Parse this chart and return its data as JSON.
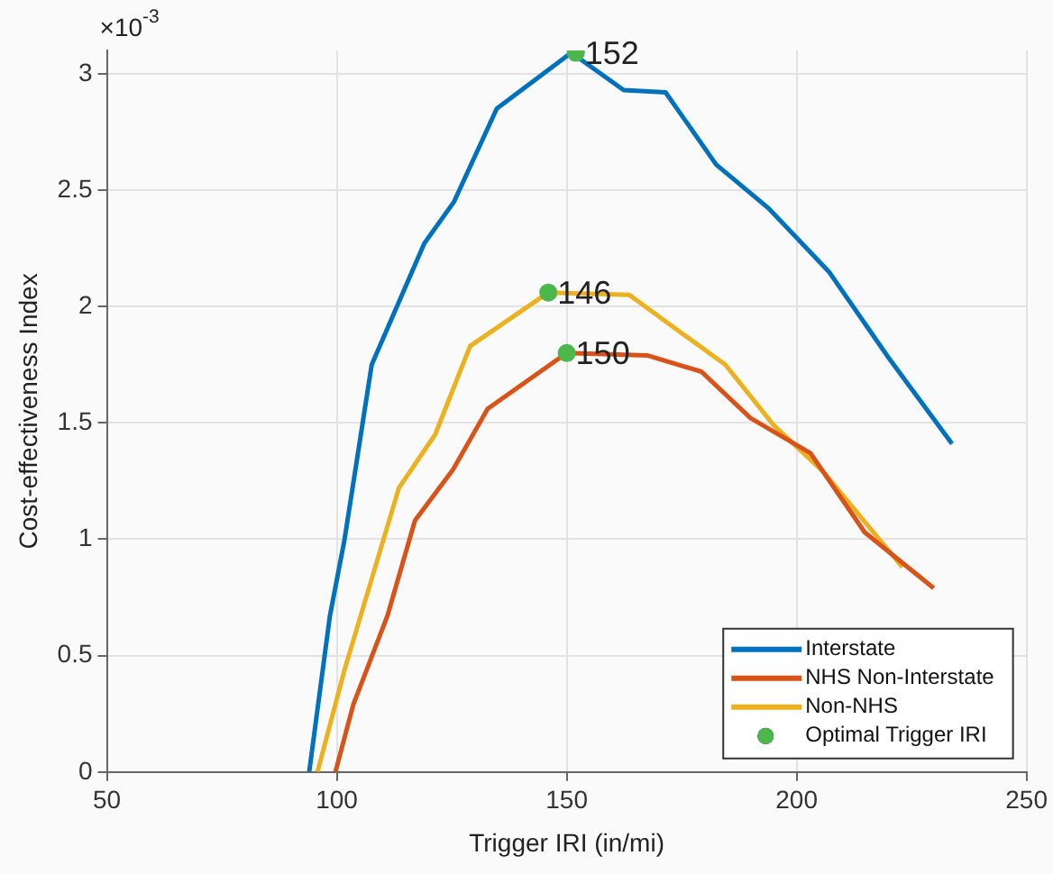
{
  "chart_data": {
    "type": "line",
    "xlabel": "Trigger IRI (in/mi)",
    "ylabel": "Cost-effectiveness Index",
    "xlim": [
      50,
      250
    ],
    "xticks": [
      50,
      100,
      150,
      200,
      250
    ],
    "ylim": [
      0,
      3.1
    ],
    "yticks": [
      0,
      0.5,
      1,
      1.5,
      2,
      2.5,
      3
    ],
    "grid": true,
    "legend": "bottom right",
    "marker": "none",
    "line_style": "solid",
    "series": [
      {
        "name": "Interstate",
        "color": "#0072bd",
        "x": [
          94,
          98.5,
          101.7,
          107.6,
          119,
          125.5,
          134.8,
          151,
          162.4,
          171.5,
          182.5,
          194,
          207,
          220,
          233.8
        ],
        "values": [
          0,
          0.67,
          1.0,
          1.75,
          2.27,
          2.45,
          2.85,
          3.09,
          2.93,
          2.92,
          2.61,
          2.42,
          2.15,
          1.78,
          1.41
        ]
      },
      {
        "name": "NHS Non-Interstate",
        "color": "#d95319",
        "x": [
          99.7,
          103.6,
          111,
          117,
          125.3,
          132.8,
          150,
          167.5,
          179.3,
          190,
          203,
          214.8,
          229.8
        ],
        "values": [
          0,
          0.29,
          0.67,
          1.08,
          1.3,
          1.56,
          1.8,
          1.79,
          1.72,
          1.52,
          1.37,
          1.03,
          0.79
        ]
      },
      {
        "name": "Non-NHS",
        "color": "#edb120",
        "x": [
          95.8,
          101.7,
          113.5,
          121.4,
          129,
          146,
          163.6,
          175.4,
          184.5,
          195,
          205.8,
          223
        ],
        "values": [
          0,
          0.44,
          1.22,
          1.45,
          1.83,
          2.06,
          2.05,
          1.88,
          1.75,
          1.49,
          1.29,
          0.88
        ]
      },
      {
        "name": "Optimal Trigger IRI",
        "type": "scatter",
        "marker": "circle",
        "color": "#4cb84c",
        "x": [
          152,
          146,
          150
        ],
        "values": [
          3.09,
          2.06,
          1.8
        ]
      }
    ],
    "annotations": [
      "×10$^{-3}$",
      {
        "text": "152",
        "x": 152,
        "y": 3.09
      },
      {
        "text": "146",
        "x": 146,
        "y": 2.06
      },
      {
        "text": "150",
        "x": 150,
        "y": 1.8
      }
    ]
  }
}
